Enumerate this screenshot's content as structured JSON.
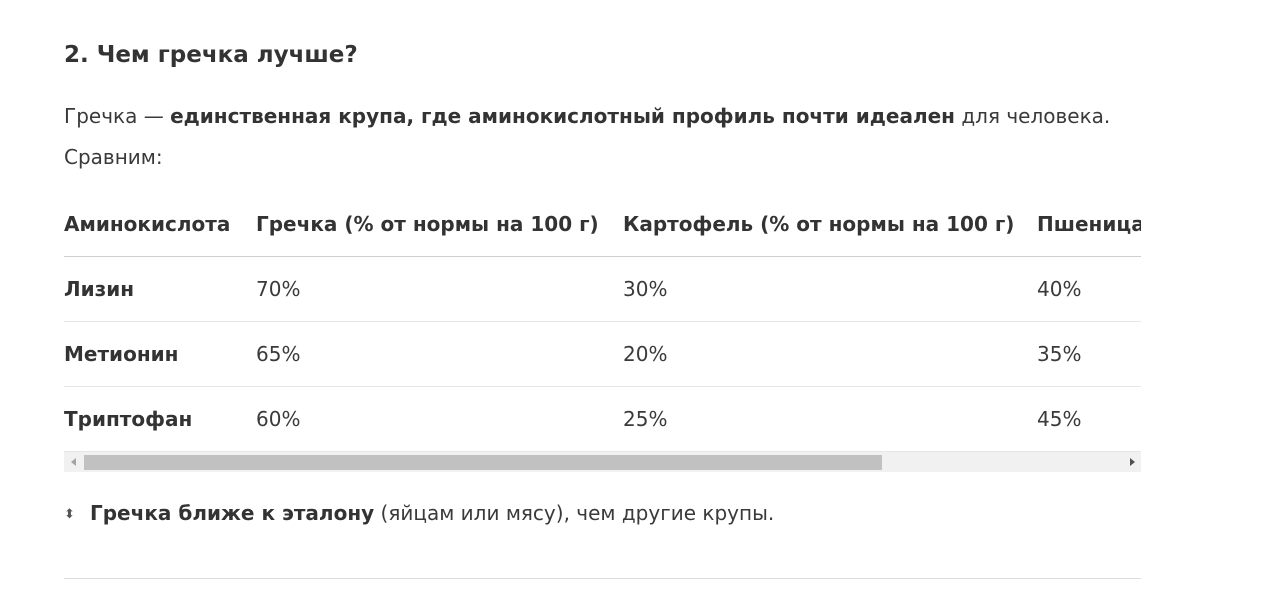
{
  "heading": "2. Чем гречка лучше?",
  "intro": {
    "prefix": "Гречка — ",
    "bold": "единственная крупа, где аминокислотный профиль почти идеален",
    "suffix": " для человека.",
    "line2": "Сравним:"
  },
  "table": {
    "headers": [
      "Аминокислота",
      "Гречка (% от нормы на 100 г)",
      "Картофель (% от нормы на 100 г)",
      "Пшеница"
    ],
    "rows": [
      {
        "name": "Лизин",
        "buckwheat": "70%",
        "potato": "30%",
        "wheat": "40%"
      },
      {
        "name": "Метионин",
        "buckwheat": "65%",
        "potato": "20%",
        "wheat": "35%"
      },
      {
        "name": "Триптофан",
        "buckwheat": "60%",
        "potato": "25%",
        "wheat": "45%"
      }
    ]
  },
  "scrollbar": {
    "position_fraction": 0.0,
    "visible_fraction": 0.77
  },
  "summary": {
    "icon": "up-down-arrow-icon",
    "bold": "Гречка ближе к эталону",
    "rest": " (яйцам или мясу), чем другие крупы."
  }
}
